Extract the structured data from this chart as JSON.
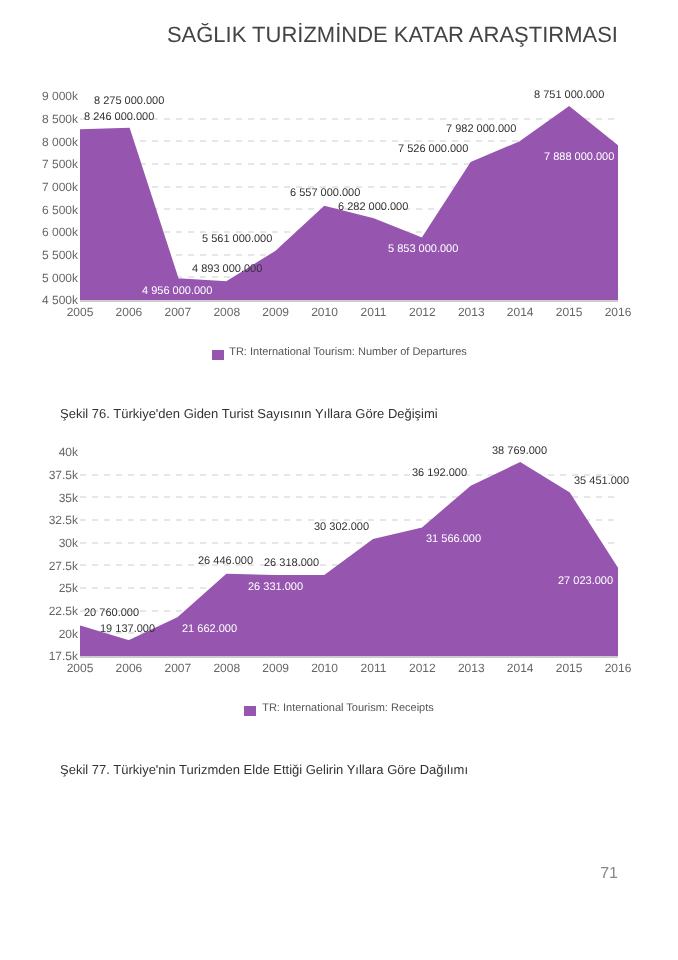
{
  "chart_data": [
    {
      "type": "area",
      "title": "SAĞLIK TURİZMİNDE KATAR ARAŞTIRMASI",
      "x": [
        2005,
        2006,
        2007,
        2008,
        2009,
        2010,
        2011,
        2012,
        2013,
        2014,
        2015,
        2016
      ],
      "series": [
        {
          "name": "TR: International Tourism: Number of Departures",
          "color": "#9656b0",
          "values": [
            8246000,
            8275000,
            4956000,
            4893000,
            5561000,
            6557000,
            6282000,
            5853000,
            7526000,
            7982000,
            8751000,
            7888000
          ],
          "value_labels": [
            "8 246 000.000",
            "8 275 000.000",
            "4 956 000.000",
            "4 893 000.000",
            "5 561 000.000",
            "6 557 000.000",
            "6 282 000.000",
            "5 853 000.000",
            "7 526 000.000",
            "7 982 000.000",
            "8 751 000.000",
            "7 888 000.000"
          ]
        }
      ],
      "xlim": [
        2005,
        2016
      ],
      "xticks": [
        2005,
        2006,
        2007,
        2008,
        2009,
        2010,
        2011,
        2012,
        2013,
        2014,
        2015,
        2016
      ],
      "ylim": [
        4500000,
        9000000
      ],
      "yticks": [
        {
          "value": 4500000,
          "label": "4 500k"
        },
        {
          "value": 5000000,
          "label": "5 000k"
        },
        {
          "value": 5500000,
          "label": "5 500k"
        },
        {
          "value": 6000000,
          "label": "6 000k"
        },
        {
          "value": 6500000,
          "label": "6 500k"
        },
        {
          "value": 7000000,
          "label": "7 000k"
        },
        {
          "value": 7500000,
          "label": "7 500k"
        },
        {
          "value": 8000000,
          "label": "8 000k"
        },
        {
          "value": 8500000,
          "label": "8 500k"
        },
        {
          "value": 9000000,
          "label": "9 000k"
        }
      ],
      "grid": "y",
      "legend": "bottom",
      "annotations": [
        "Şekil 76. Türkiye'den Giden Turist Sayısının Yıllara Göre Değişimi"
      ]
    },
    {
      "type": "area",
      "x": [
        2005,
        2006,
        2007,
        2008,
        2009,
        2010,
        2011,
        2012,
        2013,
        2014,
        2015,
        2016
      ],
      "series": [
        {
          "name": "TR: International Tourism: Receipts",
          "color": "#9656b0",
          "values": [
            20760,
            19137,
            21662,
            26446,
            26331,
            26318,
            30302,
            31566,
            36192,
            38769,
            35451,
            27023
          ],
          "value_labels": [
            "20 760.000",
            "19 137.000",
            "21 662.000",
            "26 446.000",
            "26 331.000",
            "26 318.000",
            "30 302.000",
            "31 566.000",
            "36 192.000",
            "38 769.000",
            "35 451.000",
            "27 023.000"
          ]
        }
      ],
      "xlim": [
        2005,
        2016
      ],
      "xticks": [
        2005,
        2006,
        2007,
        2008,
        2009,
        2010,
        2011,
        2012,
        2013,
        2014,
        2015,
        2016
      ],
      "ylim": [
        17500,
        40000
      ],
      "yticks": [
        {
          "value": 17500,
          "label": "17.5k"
        },
        {
          "value": 20000,
          "label": "20k"
        },
        {
          "value": 22500,
          "label": "22.5k"
        },
        {
          "value": 25000,
          "label": "25k"
        },
        {
          "value": 27500,
          "label": "27.5k"
        },
        {
          "value": 30000,
          "label": "30k"
        },
        {
          "value": 32500,
          "label": "32.5k"
        },
        {
          "value": 35000,
          "label": "35k"
        },
        {
          "value": 37500,
          "label": "37.5k"
        },
        {
          "value": 40000,
          "label": "40k"
        }
      ],
      "grid": "y",
      "legend": "bottom",
      "annotations": [
        "Şekil 77. Türkiye'nin Turizmden Elde Ettiği Gelirin Yıllara Göre Dağılımı",
        "71"
      ]
    }
  ]
}
